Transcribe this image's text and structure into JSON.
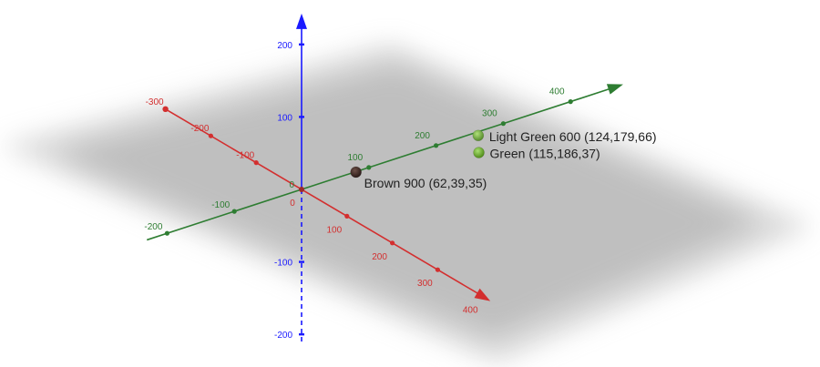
{
  "chart_data": {
    "type": "scatter",
    "projection": "3d-oblique",
    "x_axis": {
      "color": "#d32f2f",
      "range": [
        -300,
        400
      ],
      "ticks": [
        {
          "value": -300,
          "label": "-300"
        },
        {
          "value": -200,
          "label": "-200"
        },
        {
          "value": -100,
          "label": "-100"
        },
        {
          "value": 0,
          "label": "0"
        },
        {
          "value": 100,
          "label": "100"
        },
        {
          "value": 200,
          "label": "200"
        },
        {
          "value": 300,
          "label": "300"
        },
        {
          "value": 400,
          "label": "400"
        }
      ]
    },
    "y_axis": {
      "color": "#2e7d32",
      "range": [
        -200,
        400
      ],
      "ticks": [
        {
          "value": -200,
          "label": "-200"
        },
        {
          "value": -100,
          "label": "-100"
        },
        {
          "value": 0,
          "label": ""
        },
        {
          "value": 100,
          "label": "100"
        },
        {
          "value": 200,
          "label": "200"
        },
        {
          "value": 300,
          "label": "300"
        },
        {
          "value": 400,
          "label": "400"
        }
      ]
    },
    "z_axis": {
      "color": "#1a1aff",
      "range": [
        -200,
        200
      ],
      "ticks": [
        {
          "value": -200,
          "label": "-200"
        },
        {
          "value": -100,
          "label": "-100"
        },
        {
          "value": 0,
          "label": "0"
        },
        {
          "value": 100,
          "label": "100"
        },
        {
          "value": 200,
          "label": "200"
        }
      ]
    },
    "points": [
      {
        "label": "Brown 900 (62,39,35)",
        "x": 62,
        "y": 39,
        "z": 35,
        "color": "#3e2723"
      },
      {
        "label": "Green (115,186,37)",
        "x": 115,
        "y": 186,
        "z": 37,
        "color": "#73ba25"
      },
      {
        "label": "Light Green 600 (124,179,66)",
        "x": 124,
        "y": 179,
        "z": 66,
        "color": "#7cb342"
      }
    ],
    "grid": false,
    "plane_visible": true
  }
}
